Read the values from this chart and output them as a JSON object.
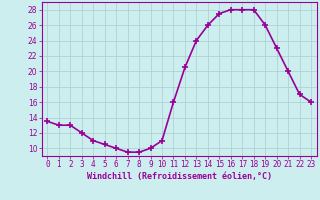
{
  "hours": [
    0,
    1,
    2,
    3,
    4,
    5,
    6,
    7,
    8,
    9,
    10,
    11,
    12,
    13,
    14,
    15,
    16,
    17,
    18,
    19,
    20,
    21,
    22,
    23
  ],
  "windchill": [
    13.5,
    13,
    13,
    12,
    11,
    10.5,
    10,
    9.5,
    9.5,
    10,
    11,
    16,
    20.5,
    24,
    26,
    27.5,
    28,
    28,
    28,
    26,
    23,
    20,
    17,
    16
  ],
  "line_color": "#990099",
  "marker": "+",
  "marker_size": 4,
  "marker_edge_width": 1.2,
  "bg_color": "#cceeee",
  "grid_color": "#aacccc",
  "xlabel": "Windchill (Refroidissement éolien,°C)",
  "xlabel_color": "#990099",
  "tick_color": "#990099",
  "spine_color": "#990099",
  "ylim": [
    9,
    29
  ],
  "yticks": [
    10,
    12,
    14,
    16,
    18,
    20,
    22,
    24,
    26,
    28
  ],
  "xlim": [
    -0.5,
    23.5
  ],
  "line_width": 1.2,
  "tick_fontsize": 5.5,
  "xlabel_fontsize": 6,
  "grid_linewidth": 0.5
}
